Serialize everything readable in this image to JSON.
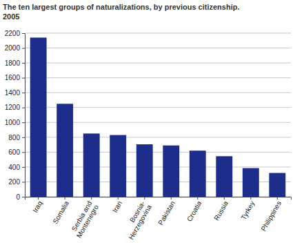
{
  "chart_data": {
    "type": "bar",
    "title": "The ten largest groups of naturalizations, by previous citizenship.",
    "subtitle": "2005",
    "categories": [
      "Iraq",
      "Somalia",
      "Serbia and Montenegro",
      "Iran",
      "Bosnia-Herzegovina",
      "Pakistan",
      "Croatia",
      "Russia",
      "Tyrkey",
      "Philippines"
    ],
    "values": [
      2140,
      1250,
      850,
      830,
      705,
      690,
      620,
      545,
      385,
      320
    ],
    "color": "#1c2d8c",
    "ylim": [
      0,
      2200
    ],
    "yticks": [
      0,
      200,
      400,
      600,
      800,
      1000,
      1200,
      1400,
      1600,
      1800,
      2000,
      2200
    ],
    "grid": true
  }
}
